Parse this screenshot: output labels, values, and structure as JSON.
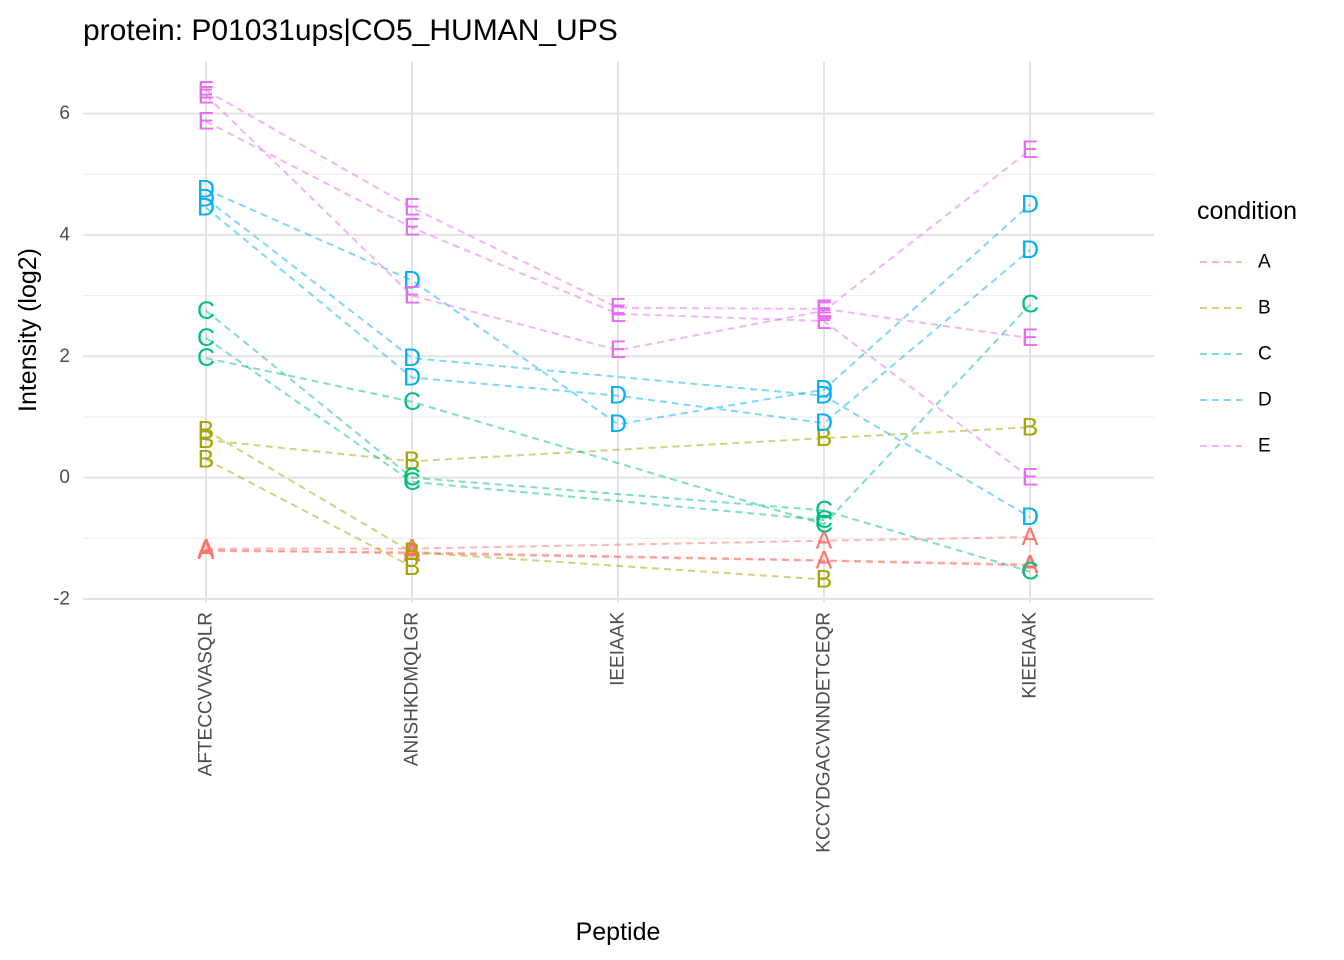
{
  "chart_data": {
    "type": "line",
    "title": "protein: P01031ups|CO5_HUMAN_UPS",
    "xlabel": "Peptide",
    "ylabel": "Intensity (log2)",
    "categories": [
      "AFTECCVVASQLR",
      "ANISHKDMQLGR",
      "IEEIAAK",
      "KCCYDGACVNNDETCEQR",
      "KIEEIAAK"
    ],
    "ylim": [
      -2.05,
      6.85
    ],
    "yticks": [
      -2,
      0,
      2,
      4,
      6
    ],
    "yticks_labels": [
      "-2",
      "0",
      "2",
      "4",
      "6"
    ],
    "grid": true,
    "line_style": "dashed",
    "point_marker": "condition letter",
    "legend": {
      "title": "condition",
      "position": "right",
      "entries": [
        "A",
        "B",
        "C",
        "D",
        "E"
      ]
    },
    "colors": {
      "A": "#F8766D",
      "B": "#A3A500",
      "C": "#00BF7D",
      "D": "#00B0F6",
      "E": "#E76BF3"
    },
    "series": [
      {
        "name": "A",
        "values": [
          -1.17,
          -1.17,
          null,
          -1.04,
          -0.98
        ]
      },
      {
        "name": "A",
        "values": [
          -1.19,
          -1.25,
          null,
          -1.37,
          -1.45
        ]
      },
      {
        "name": "A",
        "values": [
          -1.21,
          -1.23,
          null,
          null,
          -1.43
        ]
      },
      {
        "name": "B",
        "values": [
          0.78,
          -1.23,
          null,
          -1.68,
          null
        ]
      },
      {
        "name": "B",
        "values": [
          0.62,
          0.27,
          null,
          0.65,
          0.83
        ]
      },
      {
        "name": "B",
        "values": [
          0.3,
          -1.47,
          null,
          null,
          null
        ]
      },
      {
        "name": "C",
        "values": [
          2.75,
          0.0,
          null,
          -0.54,
          -1.55
        ]
      },
      {
        "name": "C",
        "values": [
          2.3,
          -0.07,
          null,
          -0.7,
          null
        ]
      },
      {
        "name": "C",
        "values": [
          1.97,
          1.25,
          null,
          -0.77,
          2.85
        ]
      },
      {
        "name": "D",
        "values": [
          4.75,
          3.25,
          0.88,
          1.45,
          4.5
        ]
      },
      {
        "name": "D",
        "values": [
          4.6,
          1.97,
          null,
          1.35,
          -0.65
        ]
      },
      {
        "name": "D",
        "values": [
          4.45,
          1.65,
          1.35,
          0.9,
          3.75
        ]
      },
      {
        "name": "E",
        "values": [
          6.38,
          4.45,
          2.8,
          2.78,
          2.3
        ]
      },
      {
        "name": "E",
        "values": [
          6.3,
          3.0,
          2.1,
          2.75,
          5.4
        ]
      },
      {
        "name": "E",
        "values": [
          5.87,
          4.12,
          2.7,
          2.58,
          0.0
        ]
      }
    ]
  }
}
